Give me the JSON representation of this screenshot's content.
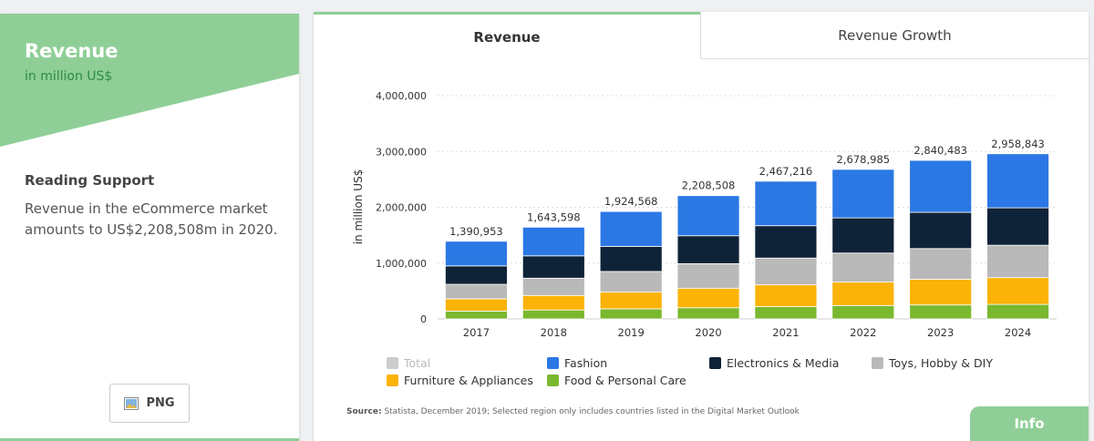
{
  "sidebar": {
    "title": "Revenue",
    "subtitle": "in million US$",
    "reading_heading": "Reading Support",
    "reading_text": "Revenue in the eCommerce market amounts to US$2,208,508m in 2020.",
    "png_label": "PNG"
  },
  "tabs": [
    {
      "label": "Revenue",
      "active": true
    },
    {
      "label": "Revenue Growth",
      "active": false
    }
  ],
  "source": {
    "label": "Source:",
    "text": "Statista, December 2019; Selected region only includes countries listed in the Digital Market Outlook"
  },
  "info_label": "Info",
  "colors": {
    "accent": "#8fcf97",
    "total": "#cccccc",
    "fashion": "#2b78e4",
    "electronics": "#0f2338",
    "toys": "#b9b9b9",
    "furniture": "#fbb307",
    "food": "#7ab82f"
  },
  "chart_data": {
    "type": "bar",
    "stacked": true,
    "ylabel": "in million US$",
    "ylim": [
      0,
      4000000
    ],
    "yticks": [
      "0",
      "1,000,000",
      "2,000,000",
      "3,000,000",
      "4,000,000"
    ],
    "categories": [
      "2017",
      "2018",
      "2019",
      "2020",
      "2021",
      "2022",
      "2023",
      "2024"
    ],
    "totals": [
      1390953,
      1643598,
      1924568,
      2208508,
      2467216,
      2678985,
      2840483,
      2958843
    ],
    "total_labels": [
      "1,390,953",
      "1,643,598",
      "1,924,568",
      "2,208,508",
      "2,467,216",
      "2,678,985",
      "2,840,483",
      "2,958,843"
    ],
    "series": [
      {
        "name": "Food & Personal Care",
        "key": "food",
        "values": [
          140000,
          160000,
          180000,
          200000,
          220000,
          240000,
          250000,
          260000
        ]
      },
      {
        "name": "Furniture & Appliances",
        "key": "furniture",
        "values": [
          220000,
          260000,
          300000,
          350000,
          390000,
          420000,
          460000,
          480000
        ]
      },
      {
        "name": "Toys, Hobby & DIY",
        "key": "toys",
        "values": [
          260000,
          310000,
          370000,
          440000,
          480000,
          520000,
          550000,
          580000
        ]
      },
      {
        "name": "Electronics & Media",
        "key": "electronics",
        "values": [
          330000,
          400000,
          450000,
          500000,
          580000,
          630000,
          650000,
          670000
        ]
      },
      {
        "name": "Fashion",
        "key": "fashion",
        "values": [
          440953,
          513598,
          624568,
          718508,
          797216,
          868985,
          930483,
          968843
        ]
      }
    ],
    "legend": [
      {
        "name": "Total",
        "key": "total",
        "muted": true
      },
      {
        "name": "Fashion",
        "key": "fashion"
      },
      {
        "name": "Electronics & Media",
        "key": "electronics"
      },
      {
        "name": "Toys, Hobby & DIY",
        "key": "toys"
      },
      {
        "name": "Furniture & Appliances",
        "key": "furniture"
      },
      {
        "name": "Food & Personal Care",
        "key": "food"
      }
    ],
    "grid": true
  }
}
